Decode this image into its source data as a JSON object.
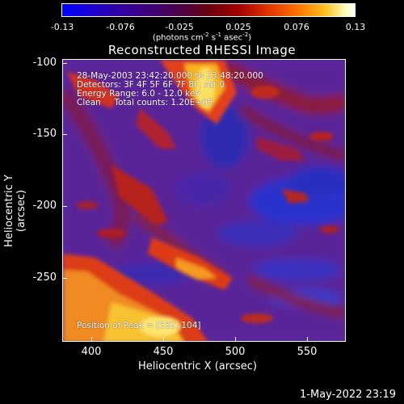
{
  "colorbar": {
    "ticks": [
      "-0.13",
      "-0.076",
      "-0.025",
      "0.025",
      "0.076",
      "0.13"
    ],
    "unit_prefix": "(photons cm",
    "unit_exp1": "-2",
    "unit_mid": " s",
    "unit_exp2": "-1",
    "unit_mid2": " asec",
    "unit_exp3": "-2",
    "unit_suffix": ")"
  },
  "title": "Reconstructed RHESSI Image",
  "info": {
    "line1": "28-May-2003 23:42:20.000 to 23:48:20.000",
    "line2": "Detectors: 3F 4F 5F 6F 7F 8F, Att 0",
    "line3": "Energy Range: 6.0 - 12.0 keV",
    "line4": "Clean     Total counts: 1.20E+05",
    "peak": "Position of Peak = [532,-104]"
  },
  "axes": {
    "xlabel": "Heliocentric X (arcsec)",
    "ylabel": "Heliocentric Y (arcsec)",
    "xticks": [
      "400",
      "450",
      "500",
      "550"
    ],
    "yticks": [
      "-100",
      "-150",
      "-200",
      "-250"
    ],
    "xlim": [
      380,
      572
    ],
    "ylim": [
      -292,
      -100
    ]
  },
  "datestamp": "1-May-2022 23:19"
}
